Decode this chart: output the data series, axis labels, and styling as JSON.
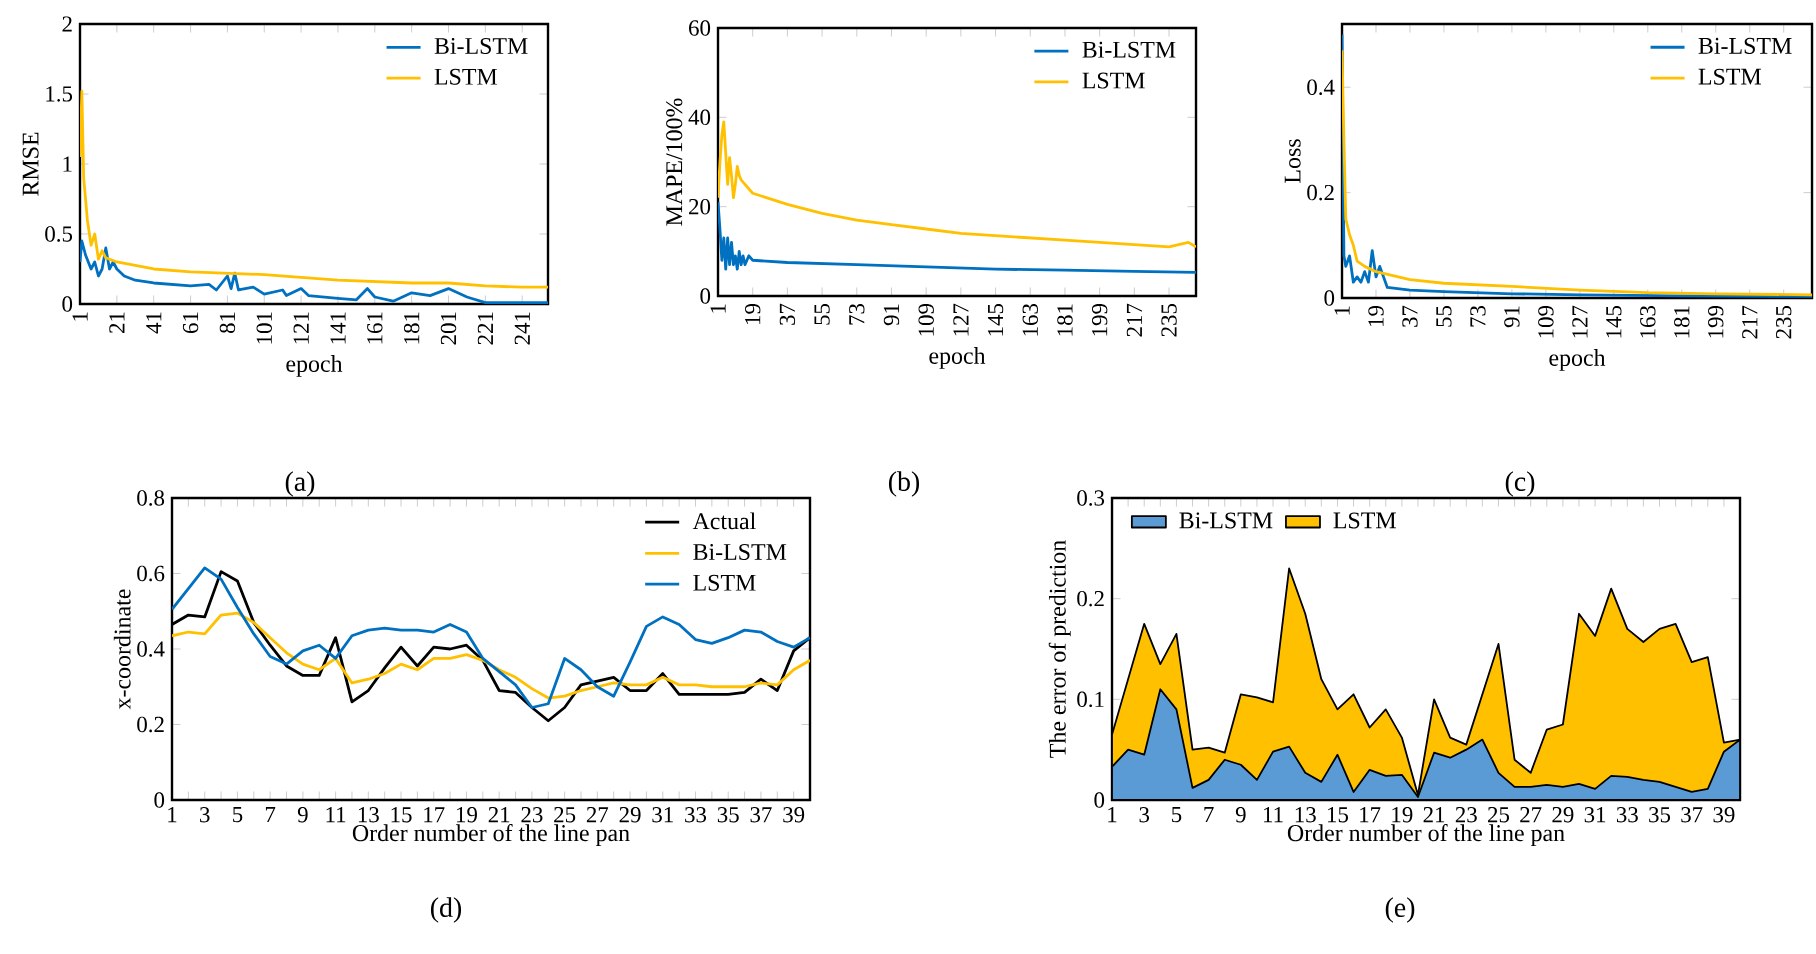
{
  "chart_data": [
    {
      "type": "line",
      "xlabel": "epoch",
      "ylabel": "RMSE",
      "annotations": [
        "(a)"
      ],
      "xlim": [
        1,
        255
      ],
      "xticks": [
        1,
        21,
        41,
        61,
        81,
        101,
        121,
        141,
        161,
        181,
        201,
        221,
        241
      ],
      "ylim": [
        0,
        2
      ],
      "yticks": [
        0,
        0.5,
        1,
        1.5,
        2
      ],
      "legend": "top right",
      "series": [
        {
          "name": "Bi-LSTM",
          "color": "#0070c0",
          "x": [
            1,
            2,
            4,
            7,
            9,
            11,
            13,
            15,
            17,
            19,
            21,
            25,
            31,
            41,
            61,
            71,
            75,
            81,
            83,
            85,
            87,
            95,
            101,
            111,
            113,
            121,
            125,
            141,
            151,
            157,
            161,
            171,
            181,
            191,
            201,
            211,
            221,
            241,
            255
          ],
          "values": [
            0.3,
            0.45,
            0.35,
            0.25,
            0.3,
            0.2,
            0.25,
            0.4,
            0.25,
            0.3,
            0.25,
            0.2,
            0.17,
            0.15,
            0.13,
            0.14,
            0.1,
            0.2,
            0.11,
            0.22,
            0.1,
            0.12,
            0.07,
            0.1,
            0.06,
            0.11,
            0.06,
            0.04,
            0.03,
            0.11,
            0.05,
            0.02,
            0.08,
            0.06,
            0.11,
            0.05,
            0.01,
            0.01,
            0.01
          ]
        },
        {
          "name": "LSTM",
          "color": "#ffc000",
          "x": [
            1,
            2,
            3,
            5,
            7,
            9,
            11,
            13,
            15,
            21,
            41,
            61,
            81,
            101,
            121,
            141,
            161,
            181,
            201,
            221,
            241,
            255
          ],
          "values": [
            1.05,
            1.52,
            0.9,
            0.6,
            0.42,
            0.5,
            0.32,
            0.38,
            0.33,
            0.3,
            0.25,
            0.23,
            0.22,
            0.21,
            0.19,
            0.17,
            0.16,
            0.15,
            0.15,
            0.13,
            0.12,
            0.12
          ]
        }
      ]
    },
    {
      "type": "line",
      "xlabel": "epoch",
      "ylabel": "MAPE/100%",
      "annotations": [
        "(b)"
      ],
      "xlim": [
        1,
        249
      ],
      "xticks": [
        1,
        19,
        37,
        55,
        73,
        91,
        109,
        127,
        145,
        163,
        181,
        199,
        217,
        235
      ],
      "ylim": [
        0,
        60
      ],
      "yticks": [
        0,
        20,
        40,
        60
      ],
      "legend": "top right",
      "series": [
        {
          "name": "Bi-LSTM",
          "color": "#0070c0",
          "x": [
            1,
            2,
            3,
            4,
            5,
            6,
            7,
            8,
            9,
            10,
            11,
            12,
            13,
            14,
            15,
            17,
            19,
            37,
            73,
            109,
            145,
            181,
            217,
            249
          ],
          "values": [
            21,
            15,
            8,
            13,
            6,
            13,
            7,
            12,
            7,
            9,
            6,
            10,
            7,
            9,
            7,
            9,
            8,
            7.5,
            7,
            6.5,
            6,
            5.8,
            5.5,
            5.3
          ]
        },
        {
          "name": "LSTM",
          "color": "#ffc000",
          "x": [
            1,
            2,
            3,
            4,
            5,
            6,
            7,
            8,
            9,
            10,
            11,
            12,
            13,
            15,
            19,
            37,
            55,
            73,
            91,
            109,
            127,
            145,
            163,
            181,
            199,
            217,
            235,
            245,
            249
          ],
          "values": [
            22,
            30,
            36,
            39,
            32,
            25,
            31,
            27,
            22,
            25,
            29,
            27,
            26,
            25,
            23,
            20.5,
            18.5,
            17,
            16,
            15,
            14,
            13.5,
            13,
            12.5,
            12,
            11.5,
            11,
            12,
            11
          ]
        }
      ]
    },
    {
      "type": "line",
      "xlabel": "epoch",
      "ylabel": "Loss",
      "annotations": [
        "(c)"
      ],
      "xlim": [
        1,
        250
      ],
      "xticks": [
        1,
        19,
        37,
        55,
        73,
        91,
        109,
        127,
        145,
        163,
        181,
        199,
        217,
        235
      ],
      "ylim": [
        0,
        0.52
      ],
      "yticks": [
        0,
        0.2,
        0.4
      ],
      "legend": "top right",
      "series": [
        {
          "name": "Bi-LSTM",
          "color": "#0070c0",
          "x": [
            1,
            2,
            3,
            5,
            7,
            9,
            11,
            13,
            15,
            17,
            19,
            21,
            25,
            37,
            55,
            91,
            127,
            181,
            250
          ],
          "values": [
            0.5,
            0.08,
            0.06,
            0.08,
            0.03,
            0.04,
            0.03,
            0.05,
            0.03,
            0.09,
            0.04,
            0.06,
            0.02,
            0.015,
            0.012,
            0.008,
            0.006,
            0.004,
            0.003
          ]
        },
        {
          "name": "LSTM",
          "color": "#ffc000",
          "x": [
            1,
            2,
            3,
            5,
            7,
            9,
            13,
            19,
            37,
            55,
            91,
            127,
            163,
            199,
            250
          ],
          "values": [
            0.47,
            0.3,
            0.15,
            0.12,
            0.1,
            0.07,
            0.06,
            0.05,
            0.035,
            0.028,
            0.022,
            0.015,
            0.01,
            0.008,
            0.006
          ]
        }
      ]
    },
    {
      "type": "line",
      "xlabel": "Order number of the line pan",
      "ylabel": "x-coordinate",
      "annotations": [
        "(d)"
      ],
      "ylim": [
        0,
        0.8
      ],
      "yticks": [
        0,
        0.2,
        0.4,
        0.6,
        0.8
      ],
      "legend": "top right",
      "categories": [
        "1",
        null,
        "3",
        null,
        "5",
        null,
        "7",
        null,
        "9",
        null,
        "11",
        null,
        "13",
        null,
        "15",
        null,
        "17",
        null,
        "19",
        null,
        "21",
        null,
        "23",
        null,
        "25",
        null,
        "27",
        null,
        "29",
        null,
        "31",
        null,
        "33",
        null,
        "35",
        null,
        "37",
        null,
        "39",
        null
      ],
      "series": [
        {
          "name": "Actual",
          "color": "#000000",
          "values": [
            0.465,
            0.49,
            0.485,
            0.605,
            0.58,
            0.47,
            0.41,
            0.355,
            0.33,
            0.33,
            0.43,
            0.26,
            0.29,
            0.35,
            0.405,
            0.355,
            0.405,
            0.4,
            0.41,
            0.37,
            0.29,
            0.285,
            0.245,
            0.21,
            0.245,
            0.305,
            0.315,
            0.325,
            0.29,
            0.29,
            0.335,
            0.28,
            0.28,
            0.28,
            0.28,
            0.285,
            0.32,
            0.29,
            0.395,
            0.43
          ]
        },
        {
          "name": "Bi-LSTM",
          "color": "#ffc000",
          "values": [
            0.435,
            0.445,
            0.44,
            0.49,
            0.495,
            0.47,
            0.43,
            0.39,
            0.36,
            0.345,
            0.375,
            0.31,
            0.32,
            0.335,
            0.36,
            0.345,
            0.375,
            0.375,
            0.385,
            0.37,
            0.345,
            0.325,
            0.295,
            0.27,
            0.275,
            0.29,
            0.3,
            0.31,
            0.305,
            0.305,
            0.325,
            0.305,
            0.305,
            0.3,
            0.3,
            0.3,
            0.31,
            0.305,
            0.345,
            0.37
          ]
        },
        {
          "name": "LSTM",
          "color": "#0070c0",
          "values": [
            0.505,
            0.56,
            0.615,
            0.585,
            0.51,
            0.44,
            0.38,
            0.36,
            0.395,
            0.41,
            0.375,
            0.435,
            0.45,
            0.455,
            0.45,
            0.45,
            0.445,
            0.465,
            0.445,
            0.375,
            0.34,
            0.305,
            0.245,
            0.255,
            0.375,
            0.345,
            0.3,
            0.275,
            0.365,
            0.46,
            0.485,
            0.465,
            0.425,
            0.415,
            0.43,
            0.45,
            0.445,
            0.42,
            0.405,
            0.43
          ]
        }
      ]
    },
    {
      "type": "area",
      "xlabel": "Order number of the line pan",
      "ylabel": "The error of prediction",
      "annotations": [
        "(e)"
      ],
      "ylim": [
        0,
        0.3
      ],
      "yticks": [
        0,
        0.1,
        0.2,
        0.3
      ],
      "legend": "top left",
      "categories": [
        "1",
        null,
        "3",
        null,
        "5",
        null,
        "7",
        null,
        "9",
        null,
        "11",
        null,
        "13",
        null,
        "15",
        null,
        "17",
        null,
        "19",
        null,
        "21",
        null,
        "23",
        null,
        "25",
        null,
        "27",
        null,
        "29",
        null,
        "31",
        null,
        "33",
        null,
        "35",
        null,
        "37",
        null,
        "39",
        null
      ],
      "series": [
        {
          "name": "Bi-LSTM",
          "color": "#5b9bd5",
          "values": [
            0.033,
            0.05,
            0.045,
            0.11,
            0.09,
            0.012,
            0.02,
            0.04,
            0.035,
            0.02,
            0.048,
            0.053,
            0.027,
            0.018,
            0.045,
            0.008,
            0.03,
            0.024,
            0.025,
            0.003,
            0.047,
            0.042,
            0.05,
            0.06,
            0.027,
            0.013,
            0.013,
            0.015,
            0.013,
            0.016,
            0.011,
            0.024,
            0.023,
            0.02,
            0.018,
            0.013,
            0.008,
            0.011,
            0.048,
            0.06
          ]
        },
        {
          "name": "LSTM",
          "color": "#ffc000",
          "values": [
            0.065,
            0.12,
            0.175,
            0.135,
            0.165,
            0.05,
            0.052,
            0.047,
            0.105,
            0.102,
            0.097,
            0.23,
            0.185,
            0.12,
            0.09,
            0.105,
            0.072,
            0.09,
            0.062,
            0.005,
            0.1,
            0.062,
            0.055,
            0.105,
            0.155,
            0.04,
            0.027,
            0.07,
            0.075,
            0.185,
            0.163,
            0.21,
            0.17,
            0.157,
            0.17,
            0.175,
            0.137,
            0.142,
            0.057,
            0.06
          ]
        }
      ]
    }
  ]
}
